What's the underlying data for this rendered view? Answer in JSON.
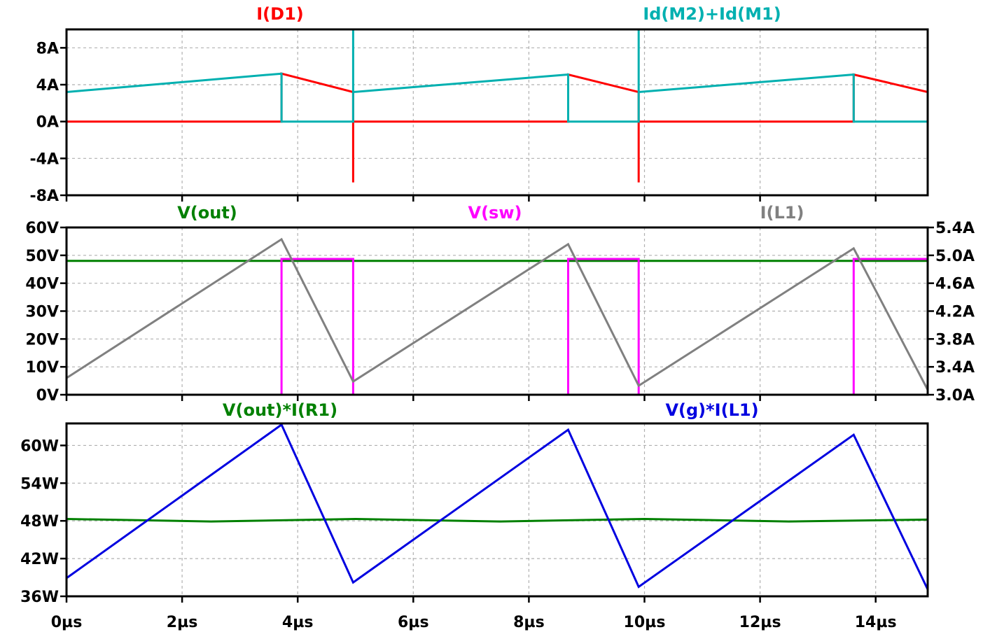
{
  "chart_data": {
    "type": "line",
    "x": {
      "unit": "µs",
      "range": [
        0,
        14.9
      ],
      "ticks": [
        0,
        2,
        4,
        6,
        8,
        10,
        12,
        14
      ],
      "tick_labels": [
        "0µs",
        "2µs",
        "4µs",
        "6µs",
        "8µs",
        "10µs",
        "12µs",
        "14µs"
      ]
    },
    "grid": true,
    "panes": [
      {
        "id": "currents",
        "left_axis": {
          "range": [
            -8,
            10
          ],
          "ticks": [
            -8,
            -4,
            0,
            4,
            8
          ],
          "tick_labels": [
            "-8A",
            "-4A",
            "0A",
            "4A",
            "8A"
          ]
        },
        "series": [
          {
            "name": "I(D1)",
            "color": "#ff0000",
            "axis": "left",
            "x": [
              0,
              3.72,
              3.72,
              4.96,
              4.96,
              4.96,
              4.96,
              8.68,
              8.68,
              9.9,
              9.9,
              9.9,
              9.9,
              13.62,
              13.62,
              14.9
            ],
            "y": [
              0,
              0,
              5.2,
              3.2,
              0,
              -6.6,
              0,
              0,
              5.1,
              3.2,
              0,
              -6.6,
              0,
              0,
              5.1,
              3.2
            ]
          },
          {
            "name": "Id(M2)+Id(M1)",
            "color": "#00b0b0",
            "axis": "left",
            "x": [
              0,
              3.72,
              3.72,
              4.96,
              4.96,
              4.96,
              4.96,
              8.68,
              8.68,
              9.9,
              9.9,
              9.9,
              9.9,
              13.62,
              13.62,
              14.9
            ],
            "y": [
              3.2,
              5.2,
              0,
              0,
              10,
              10,
              3.2,
              5.1,
              0,
              0,
              10,
              10,
              3.2,
              5.1,
              0,
              0
            ]
          }
        ]
      },
      {
        "id": "voltages",
        "left_axis": {
          "range": [
            0,
            60
          ],
          "ticks": [
            0,
            10,
            20,
            30,
            40,
            50,
            60
          ],
          "tick_labels": [
            "0V",
            "10V",
            "20V",
            "30V",
            "40V",
            "50V",
            "60V"
          ]
        },
        "right_axis": {
          "range": [
            3.0,
            5.4
          ],
          "ticks": [
            3.0,
            3.4,
            3.8,
            4.2,
            4.6,
            5.0,
            5.4
          ],
          "tick_labels": [
            "3.0A",
            "3.4A",
            "3.8A",
            "4.2A",
            "4.6A",
            "5.0A",
            "5.4A"
          ]
        },
        "series": [
          {
            "name": "V(out)",
            "color": "#008000",
            "axis": "left",
            "x": [
              0,
              14.9
            ],
            "y": [
              48,
              48
            ]
          },
          {
            "name": "V(sw)",
            "color": "#ff00ff",
            "axis": "left",
            "x": [
              0,
              3.72,
              3.72,
              4.96,
              4.96,
              8.68,
              8.68,
              9.9,
              9.9,
              13.62,
              13.62,
              14.9
            ],
            "y": [
              0,
              0,
              48.7,
              48.7,
              0,
              0,
              48.7,
              48.7,
              0,
              0,
              48.7,
              48.7
            ]
          },
          {
            "name": "I(L1)",
            "color": "#808080",
            "axis": "right",
            "x": [
              0,
              3.72,
              4.96,
              8.68,
              9.9,
              13.62,
              14.9
            ],
            "y": [
              3.24,
              5.23,
              3.19,
              5.16,
              3.13,
              5.1,
              3.07
            ]
          }
        ]
      },
      {
        "id": "power",
        "left_axis": {
          "range": [
            36,
            63.5
          ],
          "ticks": [
            36,
            42,
            48,
            54,
            60
          ],
          "tick_labels": [
            "36W",
            "42W",
            "48W",
            "54W",
            "60W"
          ]
        },
        "series": [
          {
            "name": "V(out)*I(R1)",
            "color": "#008000",
            "axis": "left",
            "x": [
              0,
              2.5,
              5,
              7.5,
              10,
              12.5,
              14.9
            ],
            "y": [
              48.3,
              47.9,
              48.3,
              47.9,
              48.3,
              47.9,
              48.2
            ]
          },
          {
            "name": "V(g)*I(L1)",
            "color": "#0000e0",
            "axis": "left",
            "x": [
              0,
              3.72,
              4.96,
              8.68,
              9.9,
              13.62,
              14.9
            ],
            "y": [
              38.9,
              63.3,
              38.2,
              62.5,
              37.5,
              61.7,
              37.1
            ]
          }
        ]
      }
    ]
  }
}
